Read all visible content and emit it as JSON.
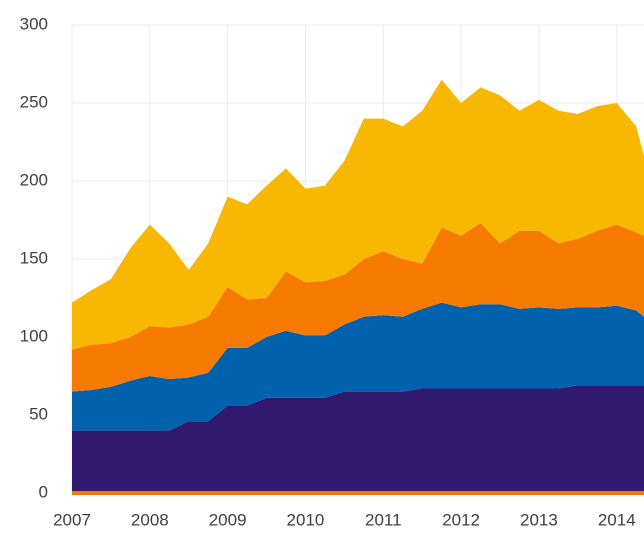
{
  "chart_data": {
    "type": "stacked_area",
    "x": [
      2007,
      2007.25,
      2007.5,
      2007.75,
      2008,
      2008.25,
      2008.5,
      2008.75,
      2009,
      2009.25,
      2009.5,
      2009.75,
      2010,
      2010.25,
      2010.5,
      2010.75,
      2011,
      2011.25,
      2011.5,
      2011.75,
      2012,
      2012.25,
      2012.5,
      2012.75,
      2013,
      2013.25,
      2013.5,
      2013.75,
      2014,
      2014.25,
      2014.35
    ],
    "series": [
      {
        "color": "#31196f",
        "values": [
          40,
          40,
          40,
          40,
          40,
          40,
          46,
          46,
          56,
          56,
          61,
          61,
          61,
          61,
          65,
          65,
          65,
          65,
          67,
          67,
          67,
          67,
          67,
          67,
          67,
          67,
          69,
          69,
          69,
          69,
          69
        ]
      },
      {
        "color": "#0061ad",
        "values": [
          25,
          26,
          28,
          32,
          35,
          33,
          28,
          31,
          37,
          37,
          39,
          43,
          40,
          40,
          43,
          48,
          49,
          48,
          51,
          55,
          52,
          54,
          54,
          51,
          52,
          51,
          50,
          50,
          51,
          48,
          44
        ]
      },
      {
        "color": "#f77a00",
        "values": [
          27,
          29,
          28,
          28,
          32,
          33,
          34,
          36,
          39,
          31,
          25,
          38,
          34,
          35,
          32,
          37,
          41,
          37,
          29,
          48,
          46,
          52,
          39,
          50,
          49,
          42,
          44,
          49,
          52,
          50,
          52
        ]
      },
      {
        "color": "#f8b700",
        "values": [
          30,
          35,
          41,
          57,
          65,
          54,
          35,
          47,
          58,
          61,
          72,
          66,
          60,
          61,
          73,
          90,
          85,
          85,
          98,
          95,
          85,
          87,
          95,
          77,
          84,
          85,
          80,
          80,
          78,
          68,
          51
        ]
      }
    ],
    "xlim": [
      2007,
      2014.35
    ],
    "xticks": [
      2007,
      2008,
      2009,
      2010,
      2011,
      2012,
      2013,
      2014
    ],
    "ylim": [
      0,
      300
    ],
    "yticks": [
      0,
      50,
      100,
      150,
      200,
      250,
      300
    ],
    "grid": true,
    "baseline_color": "#f77a00"
  }
}
